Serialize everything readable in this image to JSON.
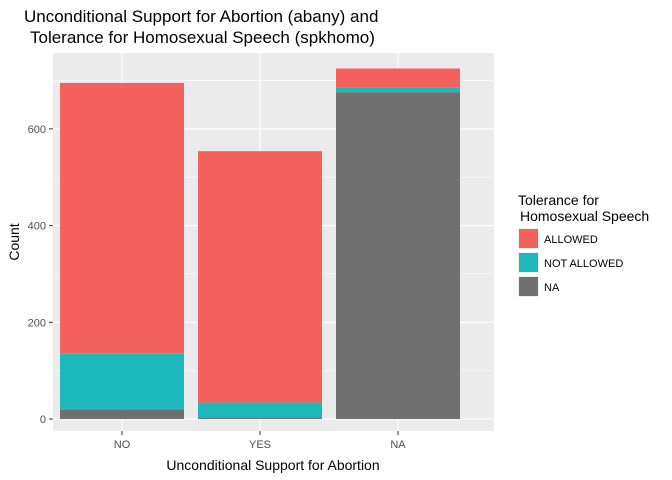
{
  "chart_data": {
    "type": "bar",
    "stacked": true,
    "title_lines": [
      "Unconditional Support for Abortion (abany) and",
      "Tolerance for Homosexual Speech (spkhomo)"
    ],
    "xlabel": "Unconditional Support for Abortion",
    "ylabel": "Count",
    "categories": [
      "NO",
      "YES",
      "NA"
    ],
    "ylim": [
      0,
      730
    ],
    "yticks": [
      0,
      200,
      400,
      600
    ],
    "ytick_labels": [
      "0",
      "200",
      "400",
      "600"
    ],
    "grid": true,
    "series": [
      {
        "name": "NA",
        "color": "#707070",
        "values": [
          20,
          2,
          676
        ]
      },
      {
        "name": "NOT ALLOWED",
        "color": "#1cb8bc",
        "values": [
          115,
          32,
          9
        ]
      },
      {
        "name": "ALLOWED",
        "color": "#f5625d",
        "values": [
          560,
          520,
          40
        ]
      }
    ],
    "legend": {
      "title_lines": [
        "Tolerance for",
        "Homosexual Speech"
      ],
      "placement": "right",
      "entries": [
        {
          "label": "ALLOWED",
          "color": "#f5625d"
        },
        {
          "label": "NOT ALLOWED",
          "color": "#1cb8bc"
        },
        {
          "label": "NA",
          "color": "#707070"
        }
      ]
    },
    "colors": {
      "panel_background": "#ebebeb",
      "grid_major": "#ffffff",
      "tick_text": "#4d4d4d"
    }
  }
}
